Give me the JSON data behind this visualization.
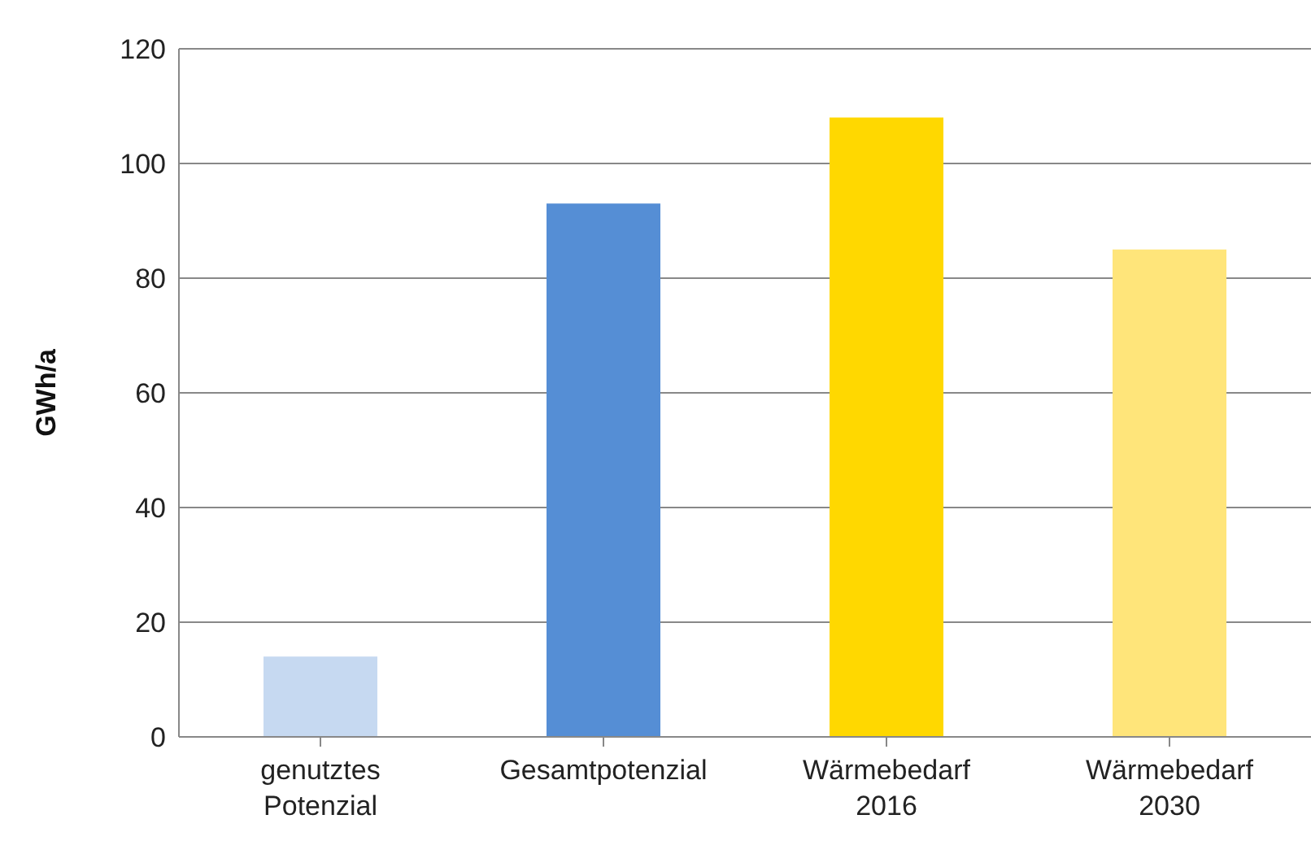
{
  "chart_data": {
    "type": "bar",
    "ylabel": "GWh/a",
    "categories": [
      "genutztes Potenzial",
      "Gesamtpotenzial",
      "Wärmebedarf 2016",
      "Wärmebedarf 2030"
    ],
    "values": [
      14,
      93,
      108,
      85
    ],
    "colors": [
      "#c6d9f1",
      "#558ed5",
      "#ffd800",
      "#ffe57a"
    ],
    "ylim": [
      0,
      120
    ],
    "yticks": [
      0,
      20,
      40,
      60,
      80,
      100,
      120
    ],
    "grid": "y",
    "legend": false
  }
}
